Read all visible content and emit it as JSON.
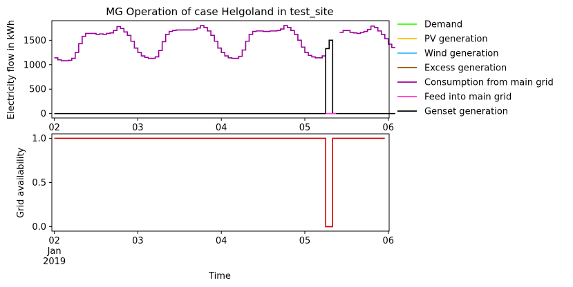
{
  "chart_data": [
    {
      "type": "line",
      "title": "MG Operation of case Helgoland in test_site",
      "xlabel": "",
      "ylabel": "Electricity flow in kWh",
      "xlim": [
        1.97,
        6.01
      ],
      "ylim": [
        -90,
        1900
      ],
      "xticks": [
        {
          "x": 2,
          "label": "02"
        },
        {
          "x": 3,
          "label": "03"
        },
        {
          "x": 4,
          "label": "04"
        },
        {
          "x": 5,
          "label": "05"
        },
        {
          "x": 6,
          "label": "06"
        }
      ],
      "yticks": [
        {
          "y": 0,
          "label": "0"
        },
        {
          "y": 500,
          "label": "500"
        },
        {
          "y": 1000,
          "label": "1000"
        },
        {
          "y": 1500,
          "label": "1500"
        }
      ],
      "legend_position": "outside-right",
      "legend": [
        {
          "label": "Demand",
          "color": "#33ff00"
        },
        {
          "label": "PV generation",
          "color": "#ffbf00"
        },
        {
          "label": "Wind generation",
          "color": "#33bbff"
        },
        {
          "label": "Excess generation",
          "color": "#994d00"
        },
        {
          "label": "Consumption from main grid",
          "color": "#990099"
        },
        {
          "label": "Feed into main grid",
          "color": "#ff33cc"
        },
        {
          "label": "Genset generation",
          "color": "#000000"
        }
      ],
      "series": [
        {
          "name": "Consumption from main grid",
          "color": "#990099",
          "step": true,
          "x_start": 2.0,
          "x_step": 0.041667,
          "values": [
            1140,
            1100,
            1080,
            1080,
            1090,
            1130,
            1250,
            1430,
            1580,
            1640,
            1640,
            1640,
            1620,
            1630,
            1620,
            1640,
            1650,
            1700,
            1780,
            1740,
            1670,
            1600,
            1480,
            1340,
            1250,
            1180,
            1150,
            1130,
            1130,
            1160,
            1290,
            1470,
            1620,
            1680,
            1700,
            1710,
            1710,
            1710,
            1710,
            1710,
            1720,
            1750,
            1800,
            1760,
            1690,
            1600,
            1480,
            1340,
            1250,
            1180,
            1140,
            1130,
            1130,
            1170,
            1300,
            1480,
            1620,
            1680,
            1690,
            1690,
            1680,
            1680,
            1690,
            1690,
            1700,
            1730,
            1800,
            1760,
            1700,
            1620,
            1500,
            1360,
            1250,
            1190,
            1160,
            1140,
            1140,
            1180,
            null,
            null,
            null,
            null,
            1660,
            1700,
            1700,
            1660,
            1650,
            1640,
            1660,
            1680,
            1720,
            1790,
            1760,
            1690,
            1620,
            1530,
            1420,
            1350
          ]
        },
        {
          "name": "Genset generation",
          "color": "#000000",
          "step": true,
          "x_start": 2.0,
          "x_step": 0.041667,
          "values": [
            0,
            0,
            0,
            0,
            0,
            0,
            0,
            0,
            0,
            0,
            0,
            0,
            0,
            0,
            0,
            0,
            0,
            0,
            0,
            0,
            0,
            0,
            0,
            0,
            0,
            0,
            0,
            0,
            0,
            0,
            0,
            0,
            0,
            0,
            0,
            0,
            0,
            0,
            0,
            0,
            0,
            0,
            0,
            0,
            0,
            0,
            0,
            0,
            0,
            0,
            0,
            0,
            0,
            0,
            0,
            0,
            0,
            0,
            0,
            0,
            0,
            0,
            0,
            0,
            0,
            0,
            0,
            0,
            0,
            0,
            0,
            0,
            0,
            0,
            0,
            0,
            0,
            0,
            1330,
            1500,
            0,
            0,
            0,
            0,
            0,
            0,
            0,
            0,
            0,
            0,
            0,
            0,
            0,
            0,
            0,
            0,
            0,
            0
          ]
        },
        {
          "name": "Feed into main grid",
          "color": "#ff33cc",
          "step": true,
          "x_start": 5.25,
          "x_step": 0.041667,
          "values": [
            0,
            0,
            0
          ]
        }
      ]
    },
    {
      "type": "line",
      "title": "",
      "xlabel": "Time",
      "ylabel": "Grid availability",
      "xlim": [
        1.97,
        6.01
      ],
      "ylim": [
        -0.05,
        1.05
      ],
      "xticks": [
        {
          "x": 2,
          "label": "02",
          "sub": [
            "Jan",
            "2019"
          ]
        },
        {
          "x": 3,
          "label": "03"
        },
        {
          "x": 4,
          "label": "04"
        },
        {
          "x": 5,
          "label": "05"
        },
        {
          "x": 6,
          "label": "06"
        }
      ],
      "yticks": [
        {
          "y": 0,
          "label": "0.0"
        },
        {
          "y": 0.5,
          "label": "0.5"
        },
        {
          "y": 1,
          "label": "1.0"
        }
      ],
      "series": [
        {
          "name": "Grid availability",
          "color": "#cc0000",
          "step": true,
          "points": [
            [
              2.0,
              1
            ],
            [
              5.25,
              1
            ],
            [
              5.25,
              0
            ],
            [
              5.333,
              0
            ],
            [
              5.333,
              1
            ],
            [
              5.958,
              1
            ]
          ]
        }
      ]
    }
  ]
}
